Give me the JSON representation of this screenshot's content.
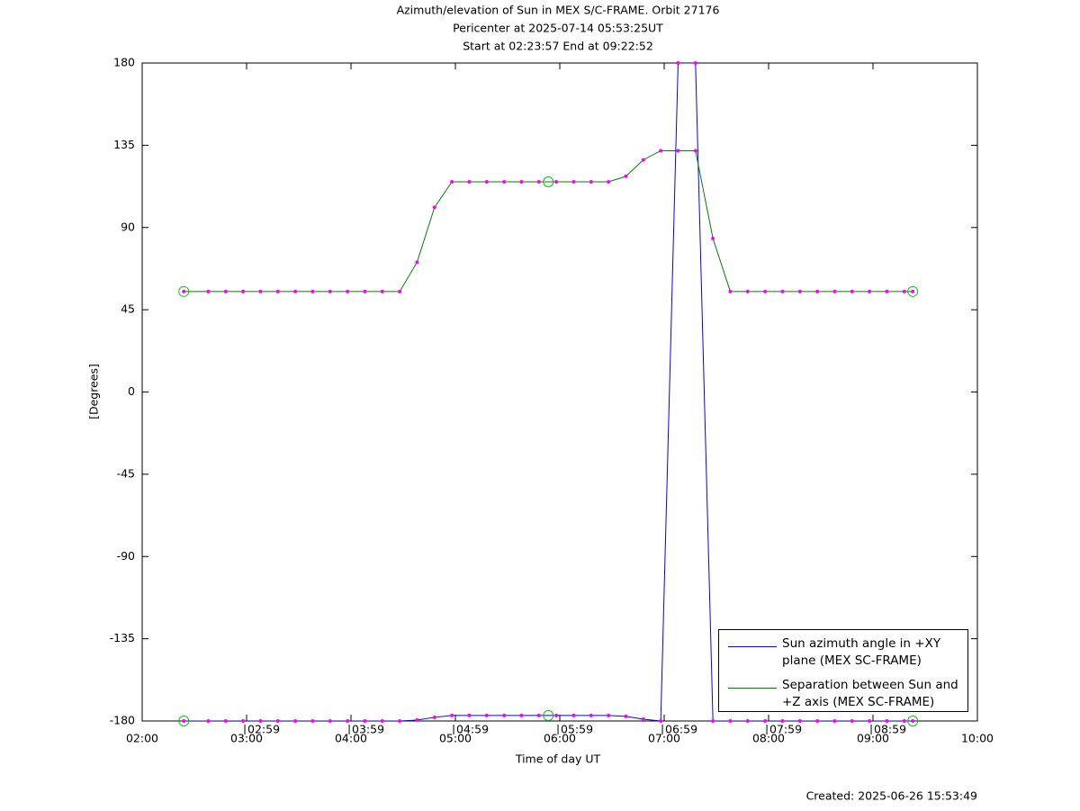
{
  "chart_data": {
    "type": "line",
    "title": "Azimuth/elevation of Sun in MEX S/C-FRAME.  Orbit 27176",
    "subtitle": "Pericenter at 2025-07-14 05:53:25UT",
    "subtitle2": "Start at 02:23:57 End at 09:22:52",
    "xlabel": "Time of day UT",
    "ylabel": "[Degrees]",
    "x": [
      2.399,
      2.633,
      2.8,
      2.967,
      3.133,
      3.3,
      3.467,
      3.633,
      3.8,
      3.967,
      4.133,
      4.3,
      4.467,
      4.633,
      4.8,
      4.967,
      5.133,
      5.3,
      5.467,
      5.633,
      5.8,
      5.967,
      6.133,
      6.3,
      6.467,
      6.633,
      6.8,
      6.967,
      7.133,
      7.3,
      7.467,
      7.633,
      7.8,
      7.967,
      8.133,
      8.3,
      8.467,
      8.633,
      8.8,
      8.967,
      9.133,
      9.3,
      9.381
    ],
    "series": [
      {
        "name": "Sun azimuth angle in +XY plane (MEX SC-FRAME)",
        "color": "#0000ff",
        "values": [
          -180,
          -180,
          -180,
          -180,
          -180,
          -180,
          -180,
          -180,
          -180,
          -180,
          -180,
          -180,
          -180,
          -179.5,
          -178,
          -177,
          -177,
          -177,
          -177,
          -177,
          -177,
          -177,
          -177,
          -177,
          -177,
          -177.5,
          -179,
          -180,
          180,
          180,
          -180,
          -180,
          -180,
          -180,
          -180,
          -180,
          -180,
          -180,
          -180,
          -180,
          -180,
          -180,
          -180
        ]
      },
      {
        "name": "Separation between Sun and +Z axis (MEX SC-FRAME)",
        "color": "#008000",
        "values": [
          55,
          55,
          55,
          55,
          55,
          55,
          55,
          55,
          55,
          55,
          55,
          55,
          55,
          71,
          101,
          115,
          115,
          115,
          115,
          115,
          115,
          115,
          115,
          115,
          115,
          118,
          127,
          132,
          132,
          132,
          84,
          55,
          55,
          55,
          55,
          55,
          55,
          55,
          55,
          55,
          55,
          55,
          55
        ]
      }
    ],
    "marker_color": "#ff00ff",
    "highlight_color": "#00cc00",
    "highlight_x": [
      2.399,
      5.89,
      9.381
    ],
    "time_marks": [
      {
        "value": 2.983,
        "label": "02:59"
      },
      {
        "value": 3.983,
        "label": "03:59"
      },
      {
        "value": 4.983,
        "label": "04:59"
      },
      {
        "value": 5.983,
        "label": "05:59"
      },
      {
        "value": 6.983,
        "label": "06:59"
      },
      {
        "value": 7.983,
        "label": "07:59"
      },
      {
        "value": 8.983,
        "label": "08:59"
      }
    ],
    "xlim": [
      2,
      10
    ],
    "xticks": [
      {
        "value": 2,
        "label": "02:00"
      },
      {
        "value": 3,
        "label": "03:00"
      },
      {
        "value": 4,
        "label": "04:00"
      },
      {
        "value": 5,
        "label": "05:00"
      },
      {
        "value": 6,
        "label": "06:00"
      },
      {
        "value": 7,
        "label": "07:00"
      },
      {
        "value": 8,
        "label": "08:00"
      },
      {
        "value": 9,
        "label": "09:00"
      },
      {
        "value": 10,
        "label": "10:00"
      }
    ],
    "ylim": [
      -180,
      180
    ],
    "yticks": [
      -180,
      -135,
      -90,
      -45,
      0,
      45,
      90,
      135,
      180
    ],
    "legend": "lower-right"
  },
  "footer": "Created: 2025-06-26 15:53:49"
}
